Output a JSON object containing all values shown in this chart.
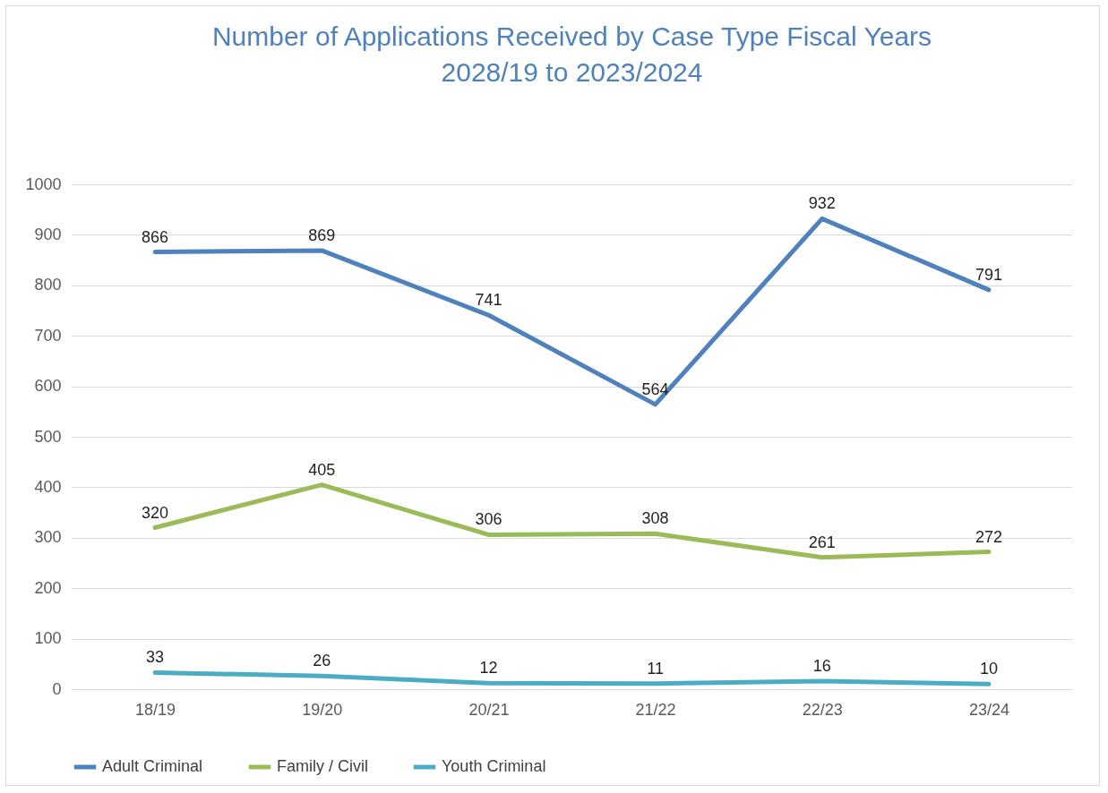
{
  "chart_data": {
    "type": "line",
    "title": "Number of Applications Received by Case Type Fiscal Years\n2028/19 to 2023/2024",
    "categories": [
      "18/19",
      "19/20",
      "20/21",
      "21/22",
      "22/23",
      "23/24"
    ],
    "series": [
      {
        "name": "Adult Criminal",
        "color": "#4f81bd",
        "values": [
          866,
          869,
          741,
          564,
          932,
          791
        ]
      },
      {
        "name": "Family / Civil",
        "color": "#9bbb59",
        "values": [
          320,
          405,
          306,
          308,
          261,
          272
        ]
      },
      {
        "name": "Youth Criminal",
        "color": "#4bacc6",
        "values": [
          33,
          26,
          12,
          11,
          16,
          10
        ]
      }
    ],
    "ylim": [
      0,
      1000
    ],
    "yticks": [
      0,
      100,
      200,
      300,
      400,
      500,
      600,
      700,
      800,
      900,
      1000
    ],
    "grid": "y",
    "legend": "bottom",
    "data_labels": true
  }
}
